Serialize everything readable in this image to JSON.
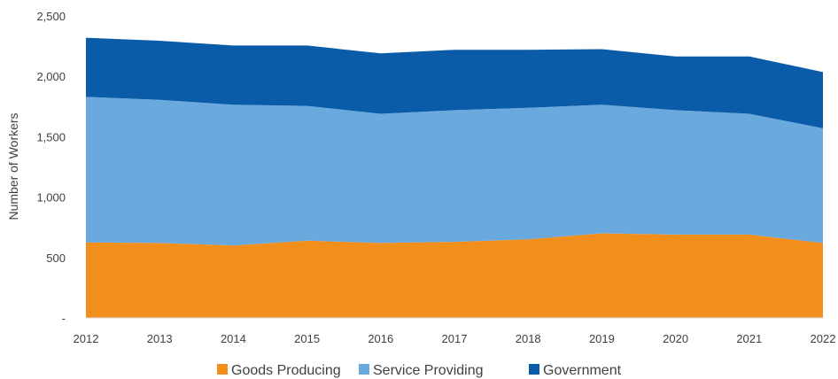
{
  "chart_data": {
    "type": "area",
    "stacked": true,
    "title": "",
    "xlabel": "",
    "ylabel": "Number of Workers",
    "ylim": [
      0,
      2500
    ],
    "y_ticks": [
      0,
      500,
      1000,
      1500,
      2000,
      2500
    ],
    "y_tick_labels": [
      "-",
      "500",
      "1,000",
      "1,500",
      "2,000",
      "2,500"
    ],
    "grid": false,
    "legend_position": "bottom",
    "categories": [
      "2012",
      "2013",
      "2014",
      "2015",
      "2016",
      "2017",
      "2018",
      "2019",
      "2020",
      "2021",
      "2022"
    ],
    "series": [
      {
        "name": "Goods Producing",
        "color": "#f28e1c",
        "values": [
          625,
          620,
          600,
          640,
          620,
          630,
          650,
          700,
          690,
          690,
          620
        ]
      },
      {
        "name": "Service Providing",
        "color": "#6aa9de",
        "values": [
          1205,
          1185,
          1165,
          1115,
          1070,
          1090,
          1090,
          1065,
          1030,
          1000,
          950
        ]
      },
      {
        "name": "Government",
        "color": "#0a5ca8",
        "values": [
          490,
          490,
          490,
          500,
          500,
          500,
          480,
          460,
          445,
          475,
          465
        ]
      }
    ]
  }
}
